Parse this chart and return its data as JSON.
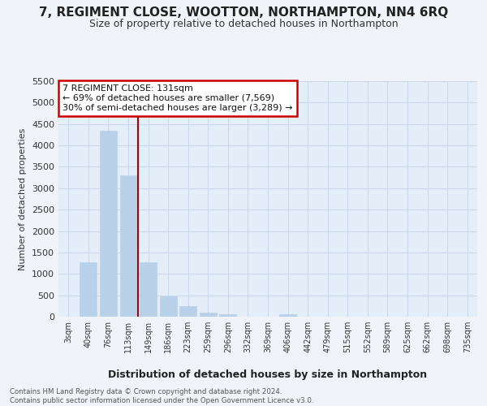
{
  "title": "7, REGIMENT CLOSE, WOOTTON, NORTHAMPTON, NN4 6RQ",
  "subtitle": "Size of property relative to detached houses in Northampton",
  "xlabel": "Distribution of detached houses by size in Northampton",
  "ylabel": "Number of detached properties",
  "categories": [
    "3sqm",
    "40sqm",
    "76sqm",
    "113sqm",
    "149sqm",
    "186sqm",
    "223sqm",
    "259sqm",
    "296sqm",
    "332sqm",
    "369sqm",
    "406sqm",
    "442sqm",
    "479sqm",
    "515sqm",
    "552sqm",
    "589sqm",
    "625sqm",
    "662sqm",
    "698sqm",
    "735sqm"
  ],
  "values": [
    0,
    1270,
    4350,
    3300,
    1270,
    480,
    240,
    90,
    60,
    0,
    0,
    60,
    0,
    0,
    0,
    0,
    0,
    0,
    0,
    0,
    0
  ],
  "bar_color": "#b8d0e8",
  "bar_edgecolor": "#b8d0e8",
  "grid_color": "#c8d8ea",
  "ylim": [
    0,
    5500
  ],
  "yticks": [
    0,
    500,
    1000,
    1500,
    2000,
    2500,
    3000,
    3500,
    4000,
    4500,
    5000,
    5500
  ],
  "vline_x_index": 3.5,
  "vline_color": "#aa0000",
  "annotation_text": "7 REGIMENT CLOSE: 131sqm\n← 69% of detached houses are smaller (7,569)\n30% of semi-detached houses are larger (3,289) →",
  "annotation_box_edgecolor": "#cc0000",
  "annotation_box_facecolor": "#ffffff",
  "footnote": "Contains HM Land Registry data © Crown copyright and database right 2024.\nContains public sector information licensed under the Open Government Licence v3.0.",
  "background_color": "#f0f4f8",
  "plot_bg_color": "#e4eef8",
  "title_fontsize": 11,
  "subtitle_fontsize": 9
}
